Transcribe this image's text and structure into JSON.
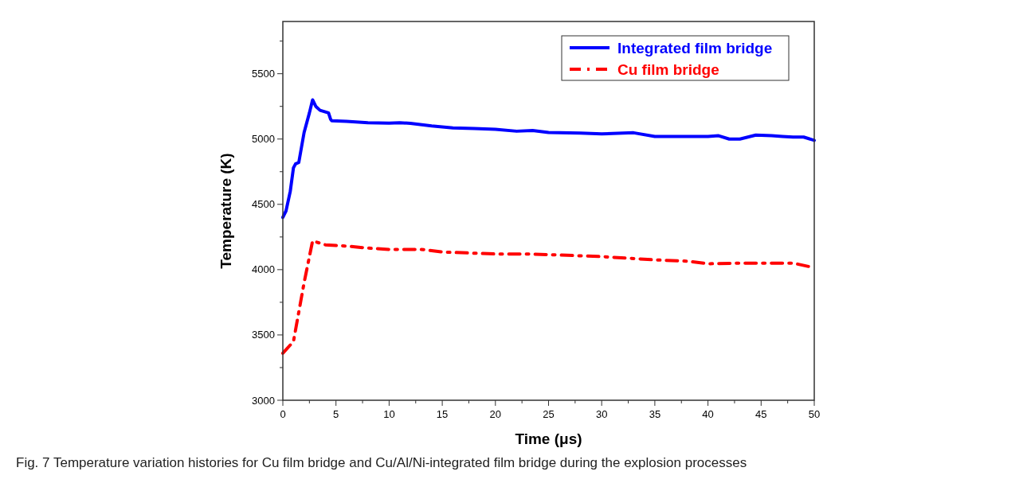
{
  "chart_data": {
    "type": "line",
    "xlabel": "Time (μs)",
    "ylabel": "Temperature (K)",
    "xlim": [
      0,
      50
    ],
    "xticks": [
      0,
      {
        "value": 2.5,
        "label": null
      },
      5,
      {
        "value": 7.5,
        "label": null
      },
      10,
      {
        "value": 12.5,
        "label": null
      },
      15,
      {
        "value": 17.5,
        "label": null
      },
      20,
      {
        "value": 22.5,
        "label": null
      },
      25,
      {
        "value": 27.5,
        "label": null
      },
      30,
      {
        "value": 32.5,
        "label": null
      },
      35,
      {
        "value": 37.5,
        "label": null
      },
      40,
      {
        "value": 42.5,
        "label": null
      },
      45,
      {
        "value": 47.5,
        "label": null
      },
      50
    ],
    "ylim": [
      3000,
      5900
    ],
    "yticks": [
      3000,
      {
        "value": 3250,
        "label": null
      },
      3500,
      {
        "value": 3750,
        "label": null
      },
      4000,
      {
        "value": 4250,
        "label": null
      },
      4500,
      {
        "value": 4750,
        "label": null
      },
      5000,
      {
        "value": 5250,
        "label": null
      },
      5500,
      {
        "value": 5750,
        "label": null
      }
    ],
    "grid": false,
    "legend": "top right",
    "series": [
      {
        "name": "Integrated film bridge",
        "color": "#0000ff",
        "line_style": "solid",
        "x": [
          0,
          0.3,
          0.7,
          1,
          1.2,
          1.5,
          2,
          2.5,
          2.8,
          3.1,
          3.5,
          4.3,
          4.5,
          4.6,
          6,
          8,
          10,
          11,
          12,
          14,
          16,
          18,
          20,
          22,
          23.5,
          25,
          28,
          30,
          32,
          33,
          35,
          38,
          40,
          41,
          42,
          43,
          44.5,
          46,
          47,
          48,
          49,
          50
        ],
        "values": [
          4400,
          4450,
          4600,
          4780,
          4810,
          4820,
          5050,
          5200,
          5300,
          5250,
          5220,
          5200,
          5150,
          5140,
          5135,
          5125,
          5122,
          5125,
          5120,
          5100,
          5085,
          5080,
          5075,
          5060,
          5065,
          5050,
          5045,
          5040,
          5045,
          5048,
          5020,
          5020,
          5020,
          5025,
          5000,
          5000,
          5030,
          5025,
          5020,
          5015,
          5015,
          4990
        ]
      },
      {
        "name": "Cu film bridge",
        "color": "#ff0000",
        "line_style": "dashed",
        "x": [
          0,
          1,
          2,
          2.8,
          4,
          6,
          8,
          10,
          13,
          15,
          20,
          23,
          25,
          30,
          35,
          38,
          40,
          43,
          48,
          50
        ],
        "values": [
          3360,
          3450,
          3900,
          4220,
          4190,
          4180,
          4165,
          4155,
          4155,
          4135,
          4120,
          4120,
          4115,
          4100,
          4075,
          4065,
          4045,
          4050,
          4050,
          4015
        ]
      }
    ],
    "annotations": [
      "Fig. 7 Temperature variation histories for Cu film bridge and Cu/Al/Ni-integrated film bridge during the explosion processes"
    ]
  }
}
